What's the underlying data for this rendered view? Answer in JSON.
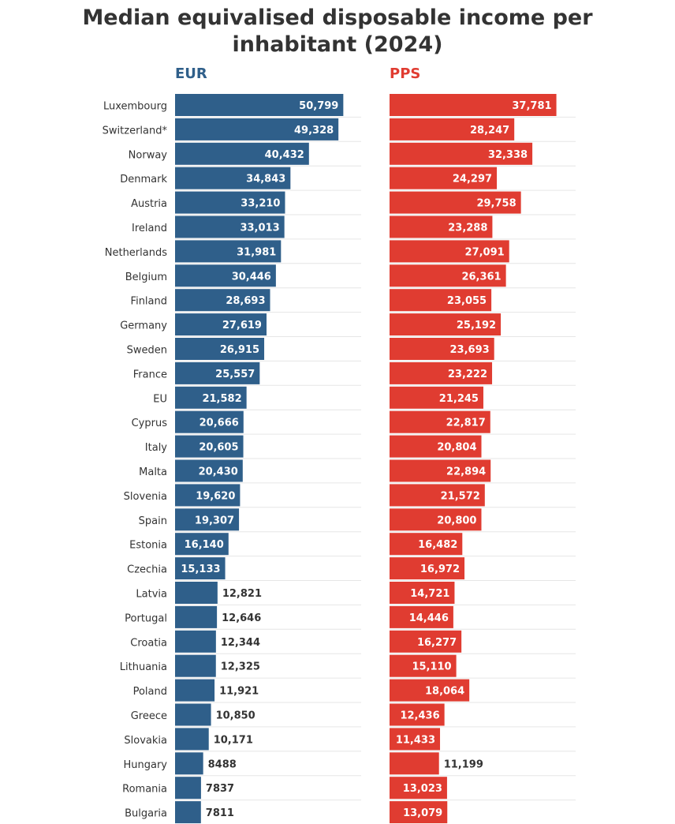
{
  "chart_data": {
    "type": "bar",
    "orientation": "horizontal",
    "title": "Median equivalised disposable income per inhabitant (2024)",
    "title_lines": [
      "Median equivalised disposable income per",
      "inhabitant (2024)"
    ],
    "categories": [
      "Luxembourg",
      "Switzerland*",
      "Norway",
      "Denmark",
      "Austria",
      "Ireland",
      "Netherlands",
      "Belgium",
      "Finland",
      "Germany",
      "Sweden",
      "France",
      "EU",
      "Cyprus",
      "Italy",
      "Malta",
      "Slovenia",
      "Spain",
      "Estonia",
      "Czechia",
      "Latvia",
      "Portugal",
      "Croatia",
      "Lithuania",
      "Poland",
      "Greece",
      "Slovakia",
      "Hungary",
      "Romania",
      "Bulgaria"
    ],
    "series": [
      {
        "name": "EUR",
        "color": "#2f5f8a",
        "xlim": [
          0,
          60000
        ],
        "values": [
          50799,
          49328,
          40432,
          34843,
          33210,
          33013,
          31981,
          30446,
          28693,
          27619,
          26915,
          25557,
          21582,
          20666,
          20605,
          20430,
          19620,
          19307,
          16140,
          15133,
          12821,
          12646,
          12344,
          12325,
          11921,
          10850,
          10171,
          8488,
          7837,
          7811
        ],
        "labels": [
          "50,799",
          "49,328",
          "40,432",
          "34,843",
          "33,210",
          "33,013",
          "31,981",
          "30,446",
          "28,693",
          "27,619",
          "26,915",
          "25,557",
          "21,582",
          "20,666",
          "20,605",
          "20,430",
          "19,620",
          "19,307",
          "16,140",
          "15,133",
          "12,821",
          "12,646",
          "12,344",
          "12,325",
          "11,921",
          "10,850",
          "10,171",
          "8488",
          "7837",
          "7811"
        ]
      },
      {
        "name": "PPS",
        "color": "#e03c31",
        "xlim": [
          0,
          45000
        ],
        "values": [
          37781,
          28247,
          32338,
          24297,
          29758,
          23288,
          27091,
          26361,
          23055,
          25192,
          23693,
          23222,
          21245,
          22817,
          20804,
          22894,
          21572,
          20800,
          16482,
          16972,
          14721,
          14446,
          16277,
          15110,
          18064,
          12436,
          11433,
          11199,
          13023,
          13079
        ],
        "labels": [
          "37,781",
          "28,247",
          "32,338",
          "24,297",
          "29,758",
          "23,288",
          "27,091",
          "26,361",
          "23,055",
          "25,192",
          "23,693",
          "23,222",
          "21,245",
          "22,817",
          "20,804",
          "22,894",
          "21,572",
          "20,800",
          "16,482",
          "16,972",
          "14,721",
          "14,446",
          "16,277",
          "15,110",
          "18,064",
          "12,436",
          "11,433",
          "11,199",
          "13,023",
          "13,079"
        ]
      }
    ],
    "grid": true,
    "legend": "panel labels above each column"
  }
}
